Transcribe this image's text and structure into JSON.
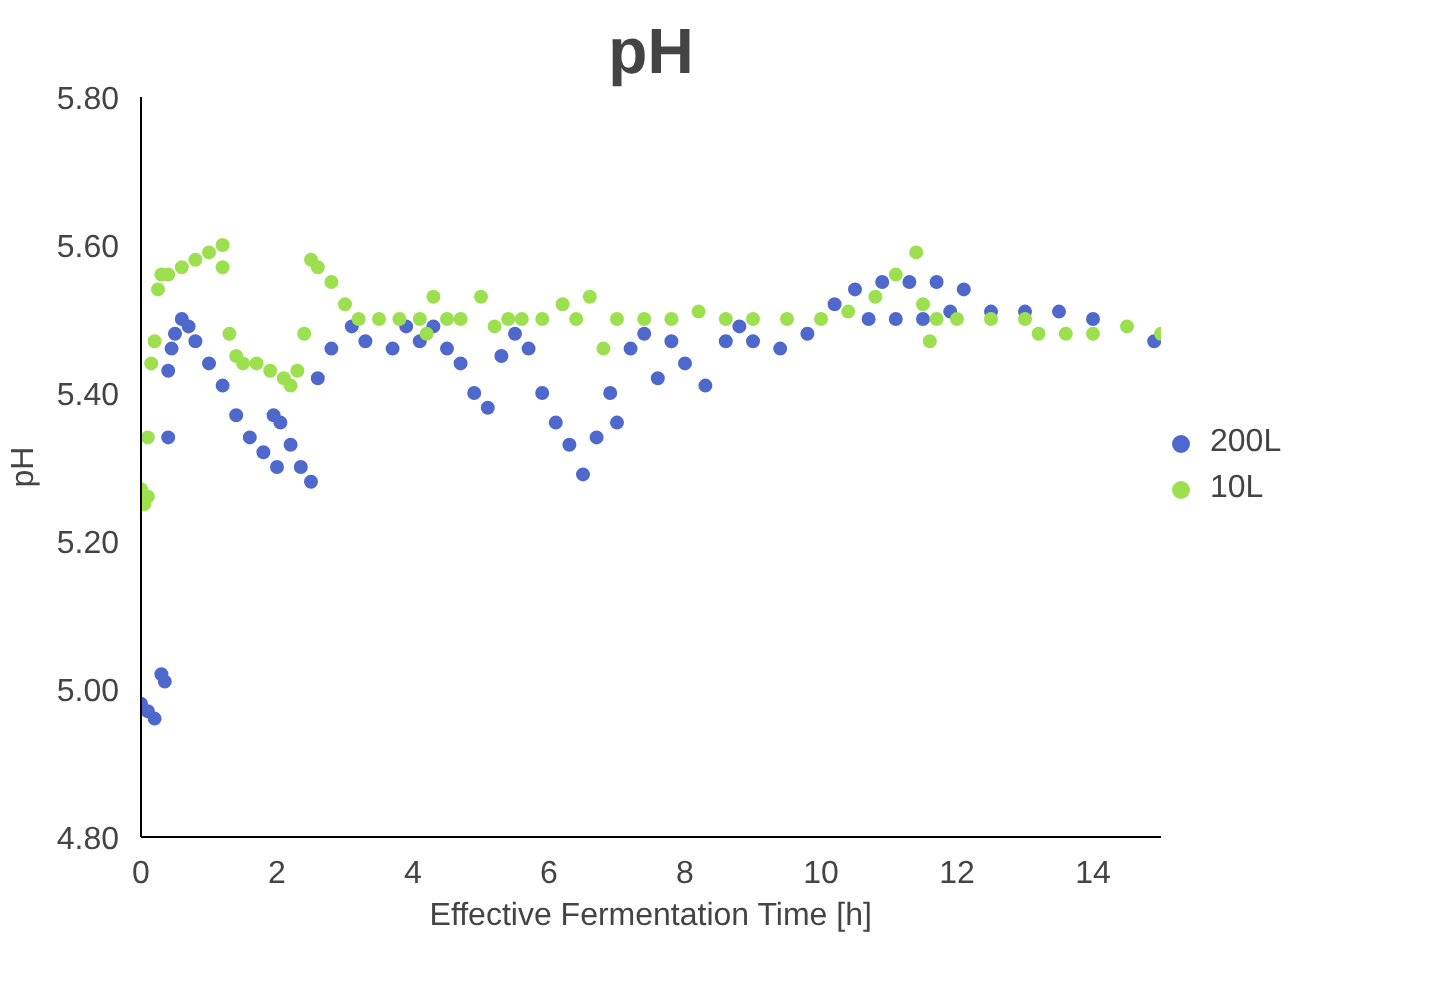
{
  "chart_data": {
    "type": "scatter",
    "title": "pH",
    "xlabel": "Effective Fermentation Time [h]",
    "ylabel": "pH",
    "xlim": [
      0,
      15
    ],
    "xticks": [
      0,
      2,
      4,
      6,
      8,
      10,
      12,
      14
    ],
    "ylim": [
      4.8,
      5.8
    ],
    "yticks": [
      {
        "value": 4.8,
        "label": "4.80"
      },
      {
        "value": 5.0,
        "label": "5.00"
      },
      {
        "value": 5.2,
        "label": "5.20"
      },
      {
        "value": 5.4,
        "label": "5.40"
      },
      {
        "value": 5.6,
        "label": "5.60"
      },
      {
        "value": 5.8,
        "label": "5.80"
      }
    ],
    "grid": false,
    "legend": "right",
    "marker": "circle",
    "series": [
      {
        "name": "200L",
        "color": "#4f68cc",
        "x": [
          0.0,
          0.1,
          0.2,
          0.3,
          0.35,
          0.4,
          0.4,
          0.45,
          0.5,
          0.6,
          0.7,
          0.8,
          1.0,
          1.2,
          1.4,
          1.6,
          1.8,
          2.0,
          1.95,
          2.05,
          2.2,
          2.35,
          2.5,
          2.6,
          2.8,
          3.0,
          3.1,
          3.3,
          3.5,
          3.7,
          3.9,
          4.1,
          4.3,
          4.5,
          4.7,
          4.9,
          5.1,
          5.3,
          5.5,
          5.7,
          5.9,
          6.1,
          6.3,
          6.5,
          6.7,
          6.9,
          7.0,
          7.2,
          7.4,
          7.6,
          7.8,
          8.0,
          8.3,
          8.6,
          8.8,
          9.0,
          9.4,
          9.8,
          10.2,
          10.5,
          10.7,
          10.9,
          11.1,
          11.3,
          11.5,
          11.7,
          11.9,
          12.1,
          12.5,
          13.0,
          13.5,
          14.0,
          14.5,
          14.9
        ],
        "values": [
          4.98,
          4.97,
          4.96,
          5.02,
          5.01,
          5.34,
          5.43,
          5.46,
          5.48,
          5.5,
          5.49,
          5.47,
          5.44,
          5.41,
          5.37,
          5.34,
          5.32,
          5.3,
          5.37,
          5.36,
          5.33,
          5.3,
          5.28,
          5.42,
          5.46,
          null,
          5.49,
          5.47,
          null,
          5.46,
          5.49,
          5.47,
          5.49,
          5.46,
          5.44,
          5.4,
          5.38,
          5.45,
          5.48,
          5.46,
          5.4,
          5.36,
          5.33,
          5.29,
          5.34,
          5.4,
          5.36,
          5.46,
          5.48,
          5.42,
          5.47,
          5.44,
          5.41,
          5.47,
          5.49,
          5.47,
          5.46,
          5.48,
          5.52,
          5.54,
          5.5,
          5.55,
          5.5,
          5.55,
          5.5,
          5.55,
          5.51,
          5.54,
          5.51,
          5.51,
          5.51,
          5.5,
          null,
          5.47
        ]
      },
      {
        "name": "10L",
        "color": "#9de04f",
        "x": [
          0.0,
          0.05,
          0.1,
          0.1,
          0.15,
          0.2,
          0.25,
          0.3,
          0.4,
          0.6,
          0.8,
          1.0,
          1.2,
          1.2,
          1.3,
          1.4,
          1.5,
          1.7,
          1.9,
          2.1,
          2.2,
          2.3,
          2.4,
          2.5,
          2.6,
          2.8,
          3.0,
          3.2,
          3.5,
          3.8,
          4.1,
          4.2,
          4.3,
          4.5,
          4.7,
          5.0,
          5.2,
          5.4,
          5.6,
          5.9,
          6.2,
          6.4,
          6.6,
          6.8,
          7.0,
          7.4,
          7.8,
          8.2,
          8.6,
          9.0,
          9.5,
          10.0,
          10.4,
          10.8,
          11.1,
          11.4,
          11.5,
          11.6,
          11.7,
          12.0,
          12.5,
          13.0,
          13.2,
          13.6,
          14.0,
          14.5,
          15.0
        ],
        "values": [
          5.27,
          5.25,
          5.26,
          5.34,
          5.44,
          5.47,
          5.54,
          5.56,
          5.56,
          5.57,
          5.58,
          5.59,
          5.6,
          5.57,
          5.48,
          5.45,
          5.44,
          5.44,
          5.43,
          5.42,
          5.41,
          5.43,
          5.48,
          5.58,
          5.57,
          5.55,
          5.52,
          5.5,
          5.5,
          5.5,
          5.5,
          5.48,
          5.53,
          5.5,
          5.5,
          5.53,
          5.49,
          5.5,
          5.5,
          5.5,
          5.52,
          5.5,
          5.53,
          5.46,
          5.5,
          5.5,
          5.5,
          5.51,
          5.5,
          5.5,
          5.5,
          5.5,
          5.51,
          5.53,
          5.56,
          5.59,
          5.52,
          5.47,
          5.5,
          5.5,
          5.5,
          5.5,
          5.48,
          5.48,
          5.48,
          5.49,
          5.48
        ]
      }
    ]
  }
}
